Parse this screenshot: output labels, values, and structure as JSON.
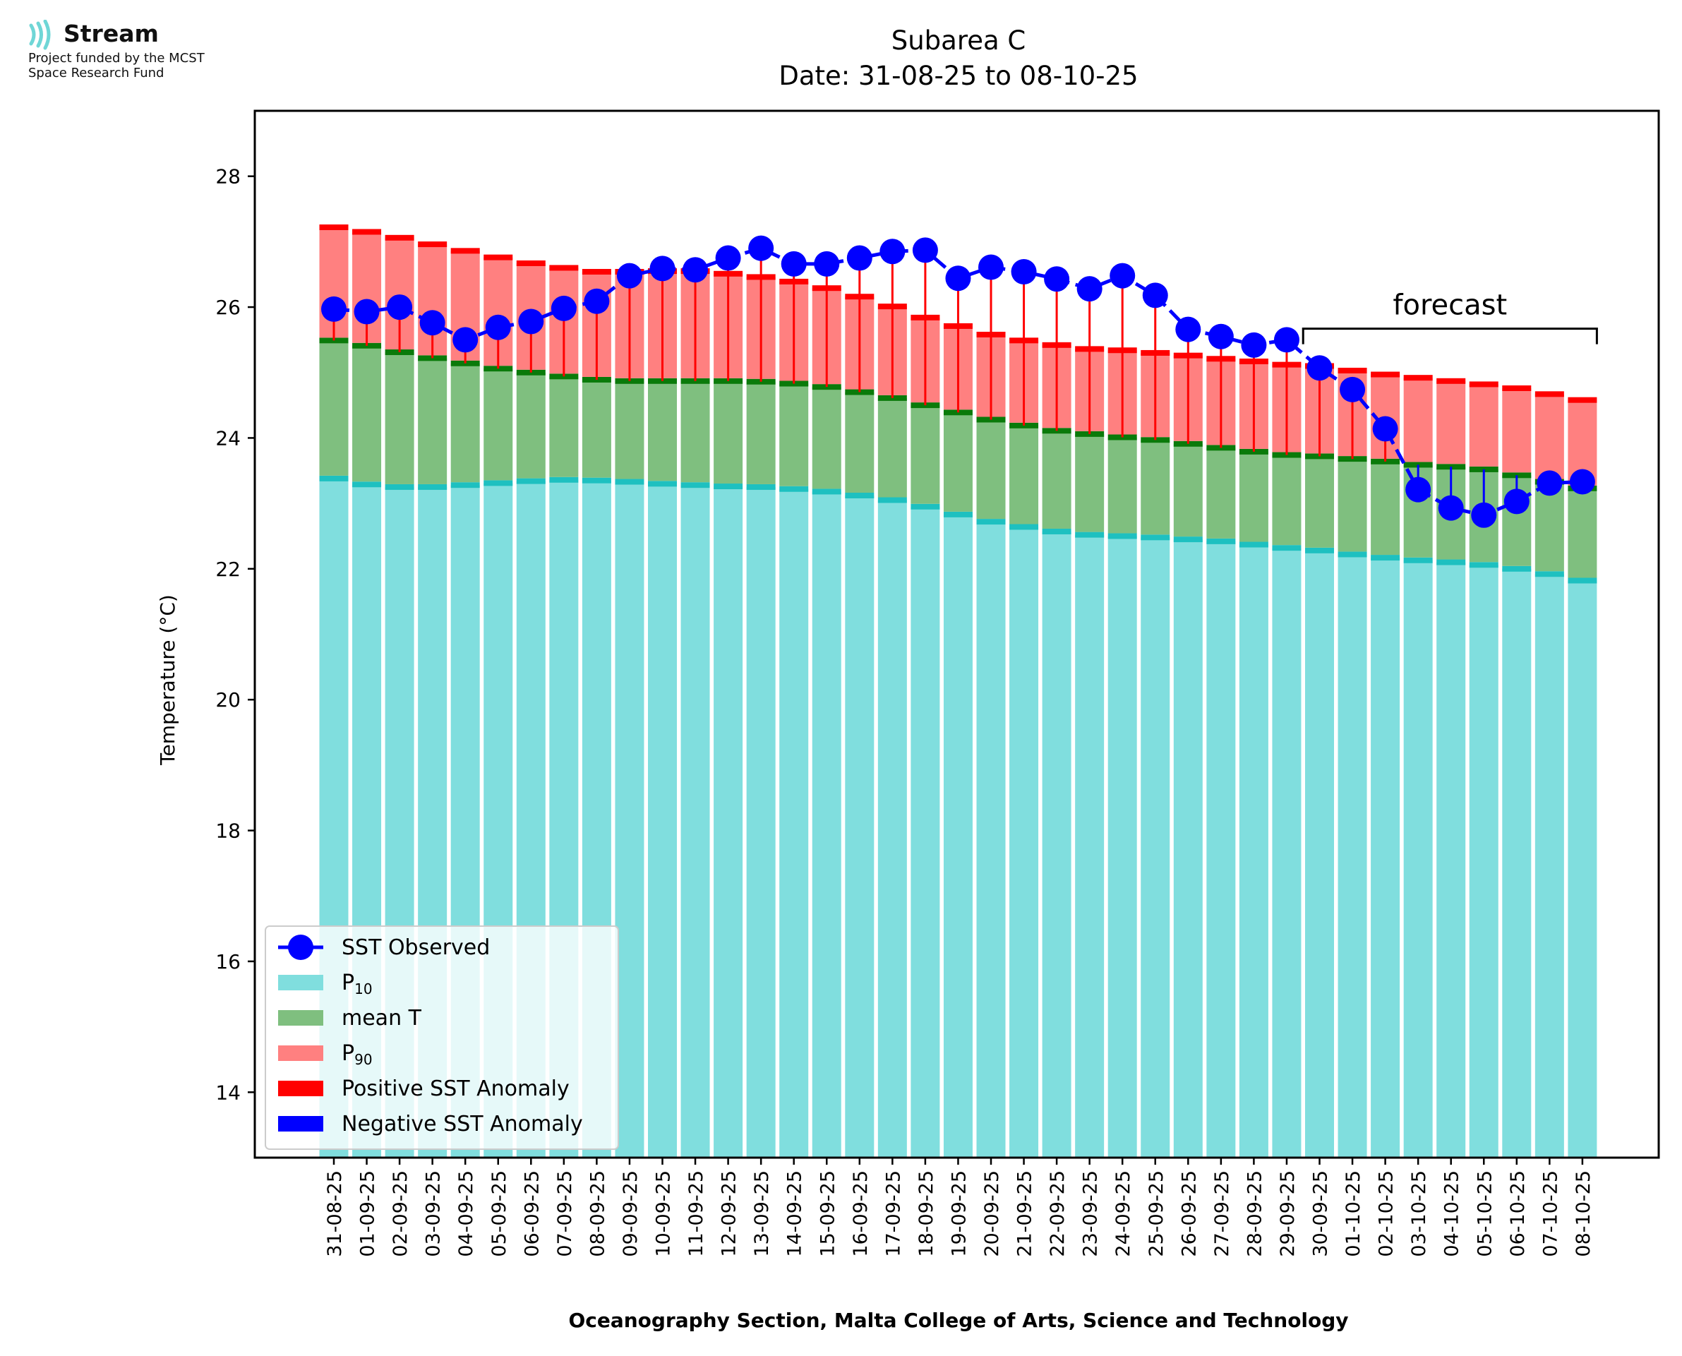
{
  "logo": {
    "name": "Stream",
    "subtitle_line1": "Project funded by the MCST",
    "subtitle_line2": "Space Research Fund"
  },
  "chart_data": {
    "type": "bar",
    "title": "Subarea C",
    "subtitle": "Date: 31-08-25 to 08-10-25",
    "xlabel": "Oceanography Section, Malta College of Arts, Science and Technology",
    "ylabel": "Temperature (°C)",
    "ylim": [
      13,
      29
    ],
    "yticks": [
      14,
      16,
      18,
      20,
      22,
      24,
      26,
      28
    ],
    "grid": false,
    "legend_position": "bottom-left",
    "forecast_label": "forecast",
    "forecast_start": "30-09-25",
    "forecast_end": "08-10-25",
    "colors": {
      "p10": "#80dede",
      "p10_edge": "#1ec0c0",
      "mean": "#7fbf7f",
      "mean_edge": "#0a7a0a",
      "p90": "#ff8080",
      "p90_edge": "#ff0000",
      "positive_anomaly": "#ff0000",
      "negative_anomaly": "#0000ff",
      "observed": "#0000ff"
    },
    "legend": [
      {
        "key": "observed",
        "label": "SST Observed"
      },
      {
        "key": "p10",
        "label": "P",
        "sub": "10"
      },
      {
        "key": "mean",
        "label": "mean T"
      },
      {
        "key": "p90",
        "label": "P",
        "sub": "90"
      },
      {
        "key": "positive_anomaly",
        "label": "Positive SST Anomaly"
      },
      {
        "key": "negative_anomaly",
        "label": "Negative SST Anomaly"
      }
    ],
    "categories": [
      "31-08-25",
      "01-09-25",
      "02-09-25",
      "03-09-25",
      "04-09-25",
      "05-09-25",
      "06-09-25",
      "07-09-25",
      "08-09-25",
      "09-09-25",
      "10-09-25",
      "11-09-25",
      "12-09-25",
      "13-09-25",
      "14-09-25",
      "15-09-25",
      "16-09-25",
      "17-09-25",
      "18-09-25",
      "19-09-25",
      "20-09-25",
      "21-09-25",
      "22-09-25",
      "23-09-25",
      "24-09-25",
      "25-09-25",
      "26-09-25",
      "27-09-25",
      "28-09-25",
      "29-09-25",
      "30-09-25",
      "01-10-25",
      "02-10-25",
      "03-10-25",
      "04-10-25",
      "05-10-25",
      "06-10-25",
      "07-10-25",
      "08-10-25"
    ],
    "series": [
      {
        "name": "P10",
        "values": [
          23.38,
          23.29,
          23.25,
          23.25,
          23.28,
          23.31,
          23.34,
          23.36,
          23.35,
          23.33,
          23.3,
          23.28,
          23.26,
          23.25,
          23.22,
          23.18,
          23.12,
          23.05,
          22.95,
          22.83,
          22.72,
          22.64,
          22.57,
          22.52,
          22.5,
          22.48,
          22.45,
          22.42,
          22.37,
          22.32,
          22.28,
          22.22,
          22.17,
          22.13,
          22.1,
          22.06,
          22.0,
          21.92,
          21.82
        ]
      },
      {
        "name": "mean T",
        "values": [
          25.49,
          25.41,
          25.31,
          25.22,
          25.14,
          25.06,
          25.0,
          24.94,
          24.89,
          24.87,
          24.87,
          24.87,
          24.87,
          24.86,
          24.83,
          24.78,
          24.7,
          24.61,
          24.5,
          24.39,
          24.28,
          24.19,
          24.11,
          24.06,
          24.01,
          23.97,
          23.91,
          23.85,
          23.79,
          23.74,
          23.72,
          23.68,
          23.64,
          23.59,
          23.56,
          23.52,
          23.43,
          23.33,
          23.23
        ]
      },
      {
        "name": "P90",
        "values": [
          27.22,
          27.15,
          27.06,
          26.96,
          26.86,
          26.76,
          26.67,
          26.6,
          26.54,
          26.54,
          26.55,
          26.55,
          26.51,
          26.46,
          26.39,
          26.29,
          26.16,
          26.01,
          25.84,
          25.71,
          25.58,
          25.49,
          25.42,
          25.36,
          25.34,
          25.3,
          25.26,
          25.21,
          25.17,
          25.12,
          25.1,
          25.03,
          24.97,
          24.92,
          24.87,
          24.82,
          24.76,
          24.67,
          24.58
        ]
      },
      {
        "name": "SST Observed",
        "values": [
          25.97,
          25.93,
          26.0,
          25.76,
          25.5,
          25.69,
          25.78,
          25.98,
          26.09,
          26.48,
          26.59,
          26.57,
          26.75,
          26.9,
          26.66,
          26.66,
          26.75,
          26.85,
          26.87,
          26.44,
          26.61,
          26.54,
          26.43,
          26.28,
          26.48,
          26.18,
          25.66,
          25.55,
          25.42,
          25.5,
          25.07,
          24.74,
          24.14,
          23.21,
          22.93,
          22.82,
          23.03,
          23.31,
          23.33
        ]
      }
    ]
  }
}
